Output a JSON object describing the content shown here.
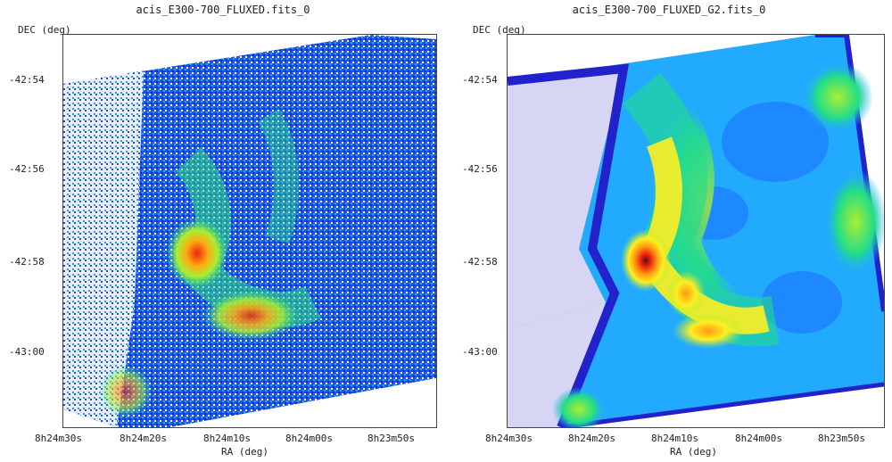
{
  "panels": [
    {
      "title": "acis_E300-700_FLUXED.fits_0",
      "y_axis_label": "DEC (deg)",
      "x_axis_label": "RA (deg)",
      "y_ticks": [
        "-42:54",
        "-42:56",
        "-42:58",
        "-43:00"
      ],
      "x_ticks": [
        "8h24m30s",
        "8h24m20s",
        "8h24m10s",
        "8h24m00s",
        "8h23m50s"
      ],
      "style": "raw"
    },
    {
      "title": "acis_E300-700_FLUXED_G2.fits_0",
      "y_axis_label": "DEC (deg)",
      "x_axis_label": "RA (deg)",
      "y_ticks": [
        "-42:54",
        "-42:56",
        "-42:58",
        "-43:00"
      ],
      "x_ticks": [
        "8h24m30s",
        "8h24m20s",
        "8h24m10s",
        "8h24m00s",
        "8h23m50s"
      ],
      "style": "smoothed"
    }
  ],
  "colors": {
    "axis": "#444444",
    "colormap": [
      "#ffffff",
      "#2222cc",
      "#1a66ff",
      "#22aaff",
      "#22dd88",
      "#aaee33",
      "#ffee22",
      "#ff9911",
      "#ee2211",
      "#551111"
    ]
  }
}
